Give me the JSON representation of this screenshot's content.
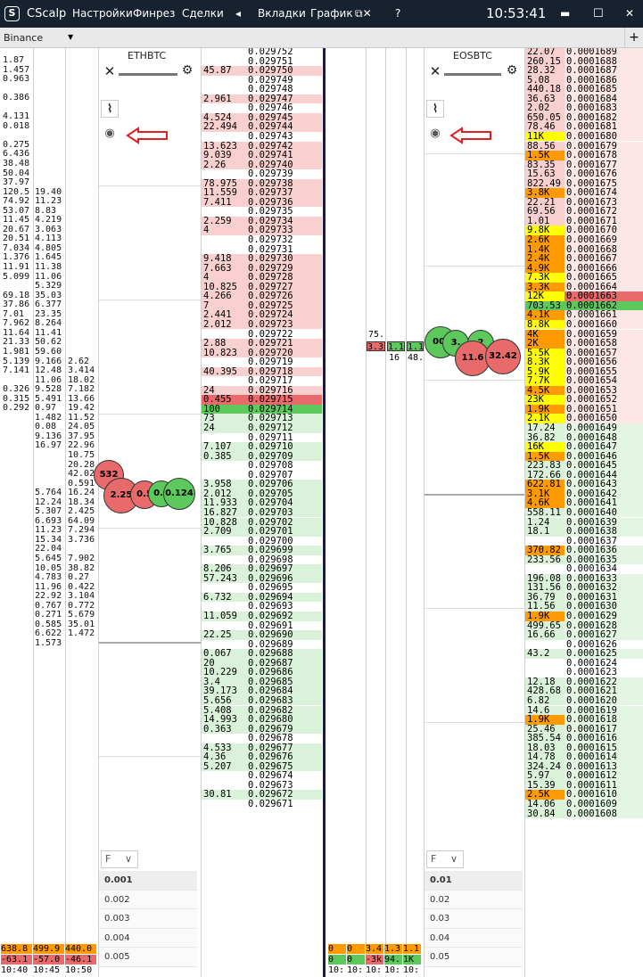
{
  "app": {
    "logo": "S",
    "name": "CScalp",
    "menu": [
      "Настройки",
      "Финрез",
      "Сделки",
      "◂",
      "Вкладки",
      "График",
      "⧉✕",
      "?"
    ],
    "clock": "10:53:41",
    "win_min": "▬",
    "win_max": "☐",
    "win_close": "✕"
  },
  "exchange": {
    "name": "Binance",
    "arrow": "▼",
    "add_tab": "+"
  },
  "trades_col1": [
    "1.87",
    "1.457",
    "0.963",
    "",
    "0.386",
    "",
    "4.131",
    "0.018",
    "",
    "0.275",
    "6.436",
    "38.48",
    "50.04",
    "37.97",
    "120.5",
    "74.92",
    "53.07",
    "11.45",
    "20.67",
    "20.51",
    "7.034",
    "1.376",
    "11.91",
    "5.099",
    "",
    "69.18",
    "37.86",
    "7.01",
    "7.962",
    "11.64",
    "21.33",
    "1.981",
    "5.139",
    "7.141",
    "",
    "0.326",
    "0.315",
    "0.292"
  ],
  "trades_col2": [
    "",
    "",
    "",
    "",
    "",
    "",
    "",
    "",
    "",
    "",
    "",
    "",
    "",
    "",
    "19.40",
    "11.23",
    "8.83",
    "4.219",
    "3.063",
    "4.113",
    "4.805",
    "1.645",
    "11.38",
    "11.06",
    "5.329",
    "35.03",
    "6.377",
    "23.35",
    "8.264",
    "11.41",
    "50.62",
    "59.60",
    "9.166",
    "12.48",
    "11.06",
    "9.528",
    "5.491",
    "0.97",
    "1.482",
    "0.08",
    "9.136",
    "16.97",
    "",
    "",
    "",
    "",
    "5.764",
    "12.24",
    "5.307",
    "6.693",
    "11.23",
    "15.34",
    "22.04",
    "5.645",
    "10.05",
    "4.783",
    "11.96",
    "22.92",
    "0.767",
    "0.271",
    "0.585",
    "6.622",
    "1.573"
  ],
  "trades_col3": [
    "",
    "",
    "",
    "",
    "",
    "",
    "",
    "",
    "",
    "",
    "",
    "",
    "",
    "",
    "",
    "",
    "",
    "",
    "",
    "",
    "",
    "",
    "",
    "",
    "",
    "",
    "",
    "",
    "",
    "",
    "",
    "",
    "2.62",
    "3.414",
    "18.02",
    "7.182",
    "13.66",
    "19.42",
    "11.52",
    "24.05",
    "37.95",
    "22.96",
    "10.75",
    "20.28",
    "42.02",
    "0.591",
    "16.24",
    "18.34",
    "2.425",
    "64.09",
    "7.294",
    "3.736",
    "",
    "7.902",
    "38.82",
    "0.27",
    "0.422",
    "3.104",
    "0.772",
    "5.679",
    "35.01",
    "1.472"
  ],
  "bottom_left": {
    "r1": [
      "638.8",
      "499.9",
      "440.0"
    ],
    "r2": [
      "-63.1",
      "-57.0",
      "-46.1"
    ],
    "r3": [
      "10:40",
      "10:45",
      "10:50"
    ]
  },
  "eth": {
    "title": "ETHBTC",
    "close": "✕",
    "settings": "⚙",
    "chart": "⌇",
    "eye": "◉",
    "filter": "F",
    "filter_arrow": "∨",
    "scales": [
      "0.001",
      "0.002",
      "0.003",
      "0.004",
      "0.005"
    ],
    "bubbles": [
      "532",
      "2.25",
      "0.5",
      "0.0",
      "0.124"
    ]
  },
  "eos": {
    "title": "EOSBTC",
    "close": "✕",
    "settings": "⚙",
    "chart": "⌇",
    "eye": "◉",
    "filter": "F",
    "filter_arrow": "∨",
    "scales": [
      "0.01",
      "0.02",
      "0.03",
      "0.04",
      "0.05"
    ],
    "bubbles": [
      "00.",
      "3.",
      "2",
      "11.6",
      "32.42"
    ],
    "mid": [
      "75.",
      "3.3",
      "1.1",
      "1.1",
      "16",
      "48."
    ]
  },
  "eth_book": [
    [
      "",
      "0.029752",
      "n"
    ],
    [
      "",
      "0.029751",
      "n"
    ],
    [
      "45.87",
      "0.029750",
      "a"
    ],
    [
      "",
      "0.029749",
      "n"
    ],
    [
      "",
      "0.029748",
      "n"
    ],
    [
      "2.961",
      "0.029747",
      "a"
    ],
    [
      "",
      "0.029746",
      "n"
    ],
    [
      "4.524",
      "0.029745",
      "a"
    ],
    [
      "22.494",
      "0.029744",
      "a"
    ],
    [
      "",
      "0.029743",
      "n"
    ],
    [
      "13.623",
      "0.029742",
      "a"
    ],
    [
      "9.039",
      "0.029741",
      "a"
    ],
    [
      "2.26",
      "0.029740",
      "a"
    ],
    [
      "",
      "0.029739",
      "n"
    ],
    [
      "78.975",
      "0.029738",
      "a"
    ],
    [
      "11.559",
      "0.029737",
      "a"
    ],
    [
      "7.411",
      "0.029736",
      "a"
    ],
    [
      "",
      "0.029735",
      "n"
    ],
    [
      "2.259",
      "0.029734",
      "a"
    ],
    [
      "4",
      "0.029733",
      "a"
    ],
    [
      "",
      "0.029732",
      "n"
    ],
    [
      "",
      "0.029731",
      "n"
    ],
    [
      "9.418",
      "0.029730",
      "a"
    ],
    [
      "7.663",
      "0.029729",
      "a"
    ],
    [
      "4",
      "0.029728",
      "a"
    ],
    [
      "10.825",
      "0.029727",
      "a"
    ],
    [
      "4.266",
      "0.029726",
      "a"
    ],
    [
      "7",
      "0.029725",
      "a"
    ],
    [
      "2.441",
      "0.029724",
      "a"
    ],
    [
      "2.012",
      "0.029723",
      "a"
    ],
    [
      "",
      "0.029722",
      "n"
    ],
    [
      "2.88",
      "0.029721",
      "a"
    ],
    [
      "10.823",
      "0.029720",
      "a"
    ],
    [
      "",
      "0.029719",
      "n"
    ],
    [
      "40.395",
      "0.029718",
      "a"
    ],
    [
      "",
      "0.029717",
      "n"
    ],
    [
      "24",
      "0.029716",
      "a"
    ],
    [
      "0.455",
      "0.029715",
      "A"
    ],
    [
      "100",
      "0.029714",
      "B"
    ],
    [
      "73",
      "0.029713",
      "b"
    ],
    [
      "24",
      "0.029712",
      "b"
    ],
    [
      "",
      "0.029711",
      "n"
    ],
    [
      "7.107",
      "0.029710",
      "b"
    ],
    [
      "0.385",
      "0.029709",
      "b"
    ],
    [
      "",
      "0.029708",
      "n"
    ],
    [
      "",
      "0.029707",
      "n"
    ],
    [
      "3.958",
      "0.029706",
      "b"
    ],
    [
      "2.012",
      "0.029705",
      "b"
    ],
    [
      "11.933",
      "0.029704",
      "b"
    ],
    [
      "16.827",
      "0.029703",
      "b"
    ],
    [
      "10.828",
      "0.029702",
      "b"
    ],
    [
      "2.709",
      "0.029701",
      "b"
    ],
    [
      "",
      "0.029700",
      "n"
    ],
    [
      "3.765",
      "0.029699",
      "b"
    ],
    [
      "",
      "0.029698",
      "n"
    ],
    [
      "8.206",
      "0.029697",
      "b"
    ],
    [
      "57.243",
      "0.029696",
      "b"
    ],
    [
      "",
      "0.029695",
      "n"
    ],
    [
      "6.732",
      "0.029694",
      "b"
    ],
    [
      "",
      "0.029693",
      "n"
    ],
    [
      "11.059",
      "0.029692",
      "b"
    ],
    [
      "",
      "0.029691",
      "n"
    ],
    [
      "22.25",
      "0.029690",
      "b"
    ],
    [
      "",
      "0.029689",
      "n"
    ],
    [
      "0.067",
      "0.029688",
      "b"
    ],
    [
      "20",
      "0.029687",
      "b"
    ],
    [
      "10.229",
      "0.029686",
      "b"
    ],
    [
      "3.4",
      "0.029685",
      "b"
    ],
    [
      "39.173",
      "0.029684",
      "b"
    ],
    [
      "5.656",
      "0.029683",
      "b"
    ],
    [
      "5.408",
      "0.029682",
      "b"
    ],
    [
      "14.993",
      "0.029680",
      "b"
    ],
    [
      "0.363",
      "0.029679",
      "b"
    ],
    [
      "",
      "0.029678",
      "n"
    ],
    [
      "4.533",
      "0.029677",
      "b"
    ],
    [
      "4.36",
      "0.029676",
      "b"
    ],
    [
      "5.207",
      "0.029675",
      "b"
    ],
    [
      "",
      "0.029674",
      "n"
    ],
    [
      "",
      "0.029673",
      "n"
    ],
    [
      "30.81",
      "0.029672",
      "b"
    ],
    [
      "",
      "0.029671",
      "n"
    ]
  ],
  "eos_book": [
    [
      "22.07",
      "0.0001689",
      "a"
    ],
    [
      "260.15",
      "0.0001688",
      "a"
    ],
    [
      "28.32",
      "0.0001687",
      "a"
    ],
    [
      "5.08",
      "0.0001686",
      "a"
    ],
    [
      "440.18",
      "0.0001685",
      "a"
    ],
    [
      "36.63",
      "0.0001684",
      "a"
    ],
    [
      "2.02",
      "0.0001683",
      "a"
    ],
    [
      "650.05",
      "0.0001682",
      "a"
    ],
    [
      "78.46",
      "0.0001681",
      "a"
    ],
    [
      "11K",
      "0.0001680",
      "y"
    ],
    [
      "88.56",
      "0.0001679",
      "a"
    ],
    [
      "1.5K",
      "0.0001678",
      "o"
    ],
    [
      "83.35",
      "0.0001677",
      "a"
    ],
    [
      "15.63",
      "0.0001676",
      "a"
    ],
    [
      "822.49",
      "0.0001675",
      "a"
    ],
    [
      "3.8K",
      "0.0001674",
      "o"
    ],
    [
      "22.21",
      "0.0001673",
      "a"
    ],
    [
      "69.56",
      "0.0001672",
      "a"
    ],
    [
      "1.01",
      "0.0001671",
      "a"
    ],
    [
      "9.8K",
      "0.0001670",
      "y"
    ],
    [
      "2.6K",
      "0.0001669",
      "o"
    ],
    [
      "1.4K",
      "0.0001668",
      "o"
    ],
    [
      "2.4K",
      "0.0001667",
      "o"
    ],
    [
      "4.9K",
      "0.0001666",
      "o"
    ],
    [
      "7.3K",
      "0.0001665",
      "y"
    ],
    [
      "3.3K",
      "0.0001664",
      "o"
    ],
    [
      "12K",
      "0.0001663",
      "Y"
    ],
    [
      "703.53",
      "0.0001662",
      "B"
    ],
    [
      "4.1K",
      "0.0001661",
      "o"
    ],
    [
      "8.8K",
      "0.0001660",
      "y"
    ],
    [
      "4K",
      "0.0001659",
      "o"
    ],
    [
      "2K",
      "0.0001658",
      "o"
    ],
    [
      "5.5K",
      "0.0001657",
      "y"
    ],
    [
      "8.3K",
      "0.0001656",
      "y"
    ],
    [
      "5.9K",
      "0.0001655",
      "y"
    ],
    [
      "7.7K",
      "0.0001654",
      "y"
    ],
    [
      "4.5K",
      "0.0001653",
      "o"
    ],
    [
      "23K",
      "0.0001652",
      "y"
    ],
    [
      "1.9K",
      "0.0001651",
      "o"
    ],
    [
      "2.1K",
      "0.0001650",
      "y"
    ],
    [
      "17.24",
      "0.0001649",
      "b"
    ],
    [
      "36.82",
      "0.0001648",
      "b"
    ],
    [
      "16K",
      "0.0001647",
      "y"
    ],
    [
      "1.5K",
      "0.0001646",
      "o"
    ],
    [
      "223.83",
      "0.0001645",
      "b"
    ],
    [
      "172.66",
      "0.0001644",
      "b"
    ],
    [
      "622.81",
      "0.0001643",
      "o"
    ],
    [
      "3.1K",
      "0.0001642",
      "o"
    ],
    [
      "4.6K",
      "0.0001641",
      "o"
    ],
    [
      "558.11",
      "0.0001640",
      "b"
    ],
    [
      "1.24",
      "0.0001639",
      "b"
    ],
    [
      "18.1",
      "0.0001638",
      "b"
    ],
    [
      "",
      "0.0001637",
      "n"
    ],
    [
      "370.82",
      "0.0001636",
      "o"
    ],
    [
      "233.56",
      "0.0001635",
      "b"
    ],
    [
      "",
      "0.0001634",
      "n"
    ],
    [
      "196.08",
      "0.0001633",
      "b"
    ],
    [
      "131.56",
      "0.0001632",
      "b"
    ],
    [
      "36.79",
      "0.0001631",
      "b"
    ],
    [
      "11.56",
      "0.0001630",
      "b"
    ],
    [
      "1.9K",
      "0.0001629",
      "o"
    ],
    [
      "499.65",
      "0.0001628",
      "b"
    ],
    [
      "16.66",
      "0.0001627",
      "b"
    ],
    [
      "",
      "0.0001626",
      "n"
    ],
    [
      "43.2",
      "0.0001625",
      "b"
    ],
    [
      "",
      "0.0001624",
      "n"
    ],
    [
      "",
      "0.0001623",
      "n"
    ],
    [
      "12.18",
      "0.0001622",
      "b"
    ],
    [
      "428.68",
      "0.0001621",
      "b"
    ],
    [
      "6.82",
      "0.0001620",
      "b"
    ],
    [
      "14.6",
      "0.0001619",
      "b"
    ],
    [
      "1.9K",
      "0.0001618",
      "o"
    ],
    [
      "25.46",
      "0.0001617",
      "b"
    ],
    [
      "385.54",
      "0.0001616",
      "b"
    ],
    [
      "18.03",
      "0.0001615",
      "b"
    ],
    [
      "14.78",
      "0.0001614",
      "b"
    ],
    [
      "324.24",
      "0.0001613",
      "b"
    ],
    [
      "5.97",
      "0.0001612",
      "b"
    ],
    [
      "15.39",
      "0.0001611",
      "b"
    ],
    [
      "2.5K",
      "0.0001610",
      "o"
    ],
    [
      "14.06",
      "0.0001609",
      "b"
    ],
    [
      "30.84",
      "0.0001608",
      "b"
    ]
  ],
  "bottom_mid": {
    "r1": [
      "0",
      "0",
      "3.4",
      "1.3",
      "1.1"
    ],
    "r2": [
      "0",
      "0",
      "-3k",
      "94.",
      "1K"
    ],
    "r3": [
      "10:",
      "10:",
      "10:",
      "10:",
      "10:"
    ]
  },
  "colors": {
    "ask": "#f8d0d0",
    "ask_best": "#e86a6a",
    "bid": "#d9f2d9",
    "bid_best": "#5dc95d",
    "yellow": "#ffff00",
    "orange": "#ff9a00"
  }
}
